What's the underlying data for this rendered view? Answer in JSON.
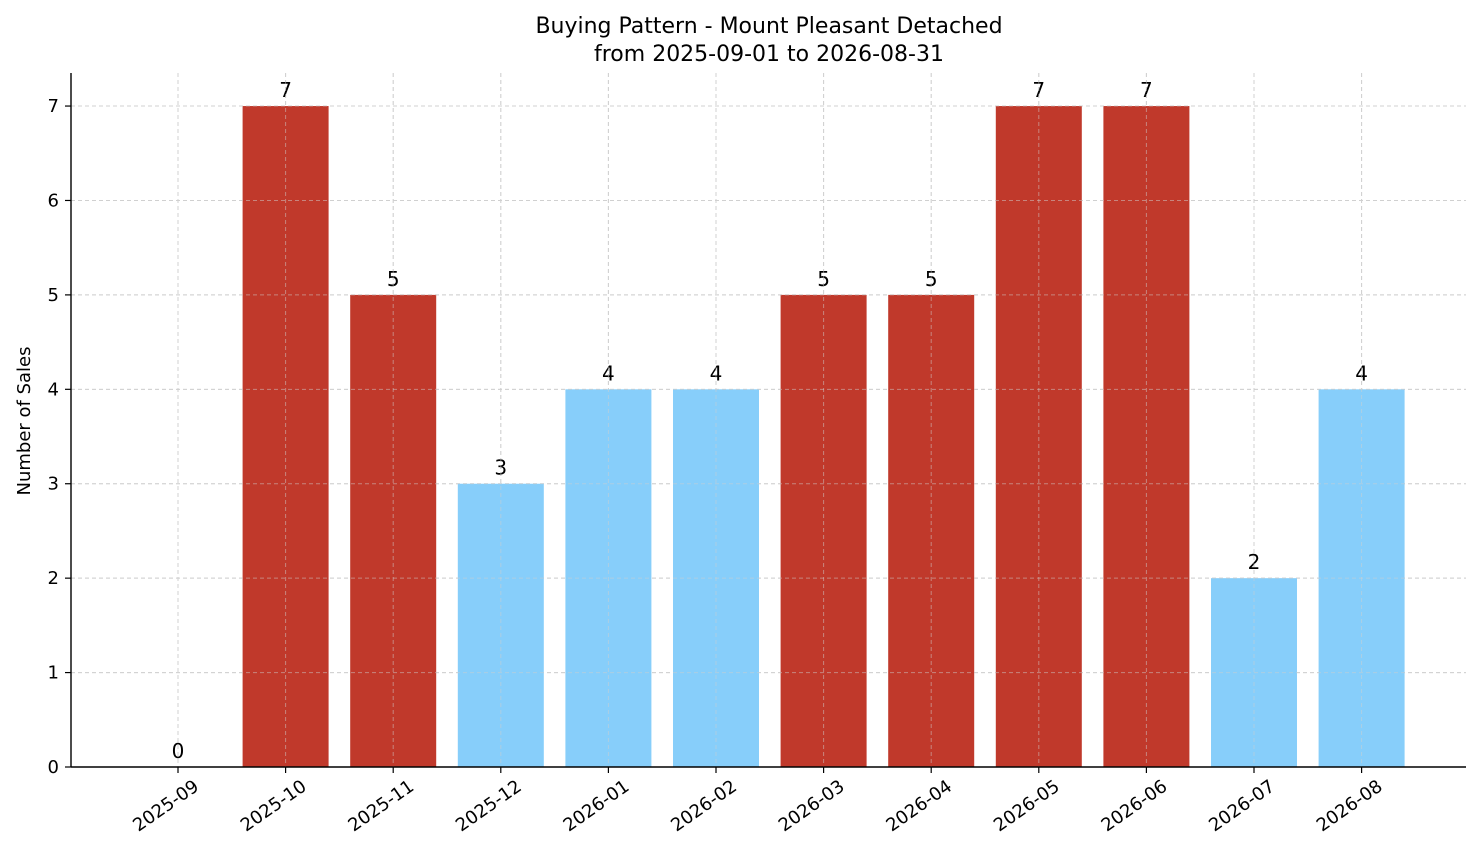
{
  "chart_data": {
    "type": "bar",
    "title": "Buying Pattern - Mount Pleasant Detached",
    "subtitle": "from 2025-09-01 to 2026-08-31",
    "xlabel": "",
    "ylabel": "Number of Sales",
    "categories": [
      "2025-09",
      "2025-10",
      "2025-11",
      "2025-12",
      "2026-01",
      "2026-02",
      "2026-03",
      "2026-04",
      "2026-05",
      "2026-06",
      "2026-07",
      "2026-08"
    ],
    "values": [
      0,
      7,
      5,
      3,
      4,
      4,
      5,
      5,
      7,
      7,
      2,
      4
    ],
    "bar_colors": [
      "#87cefa",
      "#c0392b",
      "#c0392b",
      "#87cefa",
      "#87cefa",
      "#87cefa",
      "#c0392b",
      "#c0392b",
      "#c0392b",
      "#c0392b",
      "#87cefa",
      "#87cefa"
    ],
    "yticks": [
      0,
      1,
      2,
      3,
      4,
      5,
      6,
      7
    ],
    "ylim": [
      0,
      7.35
    ],
    "grid": true,
    "colors": {
      "high": "#c0392b",
      "low": "#87cefa"
    }
  }
}
